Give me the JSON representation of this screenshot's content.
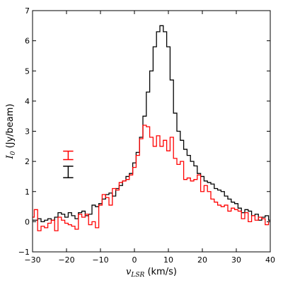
{
  "chart_data": {
    "type": "line",
    "step": true,
    "xlim": [
      -30,
      40
    ],
    "ylim": [
      -1,
      7
    ],
    "xticks": [
      -30,
      -20,
      -10,
      0,
      10,
      20,
      30,
      40
    ],
    "yticks": [
      -1,
      0,
      1,
      2,
      3,
      4,
      5,
      6,
      7
    ],
    "tick_labels_x": [
      "−30",
      "−20",
      "−10",
      "0",
      "10",
      "20",
      "30",
      "40"
    ],
    "tick_labels_y": [
      "−1",
      "0",
      "1",
      "2",
      "3",
      "4",
      "5",
      "6",
      "7"
    ],
    "xlabel_main": "v",
    "xlabel_sub": "LSR",
    "xlabel_units": " (km/s)",
    "ylabel_main": "I",
    "ylabel_sub": "0",
    "ylabel_units": " (Jy/beam)",
    "grid": false,
    "series": [
      {
        "color": "#000000",
        "x": [
          -30,
          -29,
          -28,
          -27,
          -26,
          -25,
          -24,
          -23,
          -22,
          -21,
          -20,
          -19,
          -18,
          -17,
          -16,
          -15,
          -14,
          -13,
          -12,
          -11,
          -10,
          -9,
          -8,
          -7,
          -6,
          -5,
          -4,
          -3,
          -2,
          -1,
          0,
          1,
          2,
          3,
          4,
          5,
          6,
          7,
          8,
          9,
          10,
          11,
          12,
          13,
          14,
          15,
          16,
          17,
          18,
          19,
          20,
          21,
          22,
          23,
          24,
          25,
          26,
          27,
          28,
          29,
          30,
          31,
          32,
          33,
          34,
          35,
          36,
          37,
          38,
          39,
          40
        ],
        "y": [
          0.05,
          0.05,
          0.1,
          0.0,
          0.05,
          0.1,
          0.05,
          0.15,
          0.3,
          0.25,
          0.15,
          0.3,
          0.2,
          0.1,
          0.3,
          0.35,
          0.2,
          0.25,
          0.55,
          0.5,
          0.6,
          0.75,
          0.9,
          0.95,
          0.85,
          1.1,
          1.2,
          1.35,
          1.5,
          1.6,
          1.95,
          2.3,
          2.8,
          3.5,
          4.3,
          5.0,
          5.8,
          6.3,
          6.5,
          6.3,
          5.8,
          4.7,
          3.6,
          3.0,
          2.7,
          2.4,
          2.2,
          2.0,
          1.85,
          1.6,
          1.5,
          1.35,
          1.3,
          1.25,
          1.1,
          1.05,
          1.0,
          0.85,
          0.75,
          0.65,
          0.6,
          0.45,
          0.3,
          0.4,
          0.35,
          0.2,
          0.25,
          0.05,
          0.15,
          0.2,
          0.05
        ]
      },
      {
        "color": "#ff0000",
        "x": [
          -30,
          -29,
          -28,
          -27,
          -26,
          -25,
          -24,
          -23,
          -22,
          -21,
          -20,
          -19,
          -18,
          -17,
          -16,
          -15,
          -14,
          -13,
          -12,
          -11,
          -10,
          -9,
          -8,
          -7,
          -6,
          -5,
          -4,
          -3,
          -2,
          -1,
          0,
          1,
          2,
          3,
          4,
          5,
          6,
          7,
          8,
          9,
          10,
          11,
          12,
          13,
          14,
          15,
          16,
          17,
          18,
          19,
          20,
          21,
          22,
          23,
          24,
          25,
          26,
          27,
          28,
          29,
          30,
          31,
          32,
          33,
          34,
          35,
          36,
          37,
          38,
          39,
          40
        ],
        "y": [
          0.15,
          0.4,
          -0.3,
          -0.15,
          -0.2,
          -0.05,
          0.05,
          -0.3,
          0.15,
          0.05,
          -0.05,
          -0.1,
          -0.15,
          -0.25,
          0.25,
          0.15,
          0.25,
          -0.1,
          0.0,
          -0.2,
          0.55,
          0.9,
          0.8,
          0.55,
          1.1,
          1.05,
          1.3,
          1.35,
          1.4,
          1.55,
          1.8,
          2.2,
          2.75,
          3.2,
          3.15,
          2.8,
          2.5,
          2.85,
          2.5,
          2.7,
          2.35,
          2.8,
          2.1,
          1.9,
          2.0,
          1.4,
          1.45,
          1.35,
          1.4,
          1.55,
          1.0,
          1.2,
          1.0,
          0.75,
          0.65,
          0.55,
          0.5,
          0.55,
          0.35,
          0.45,
          0.4,
          0.35,
          0.1,
          0.3,
          0.0,
          0.2,
          0.05,
          0.15,
          0.1,
          -0.1,
          0.0
        ]
      }
    ],
    "error_bars": [
      {
        "color": "#ff0000",
        "x": -19.5,
        "y": 2.2,
        "halfwidth": 1.5,
        "err": 0.14
      },
      {
        "color": "#000000",
        "x": -19.5,
        "y": 1.65,
        "halfwidth": 1.5,
        "err": 0.19
      }
    ]
  }
}
